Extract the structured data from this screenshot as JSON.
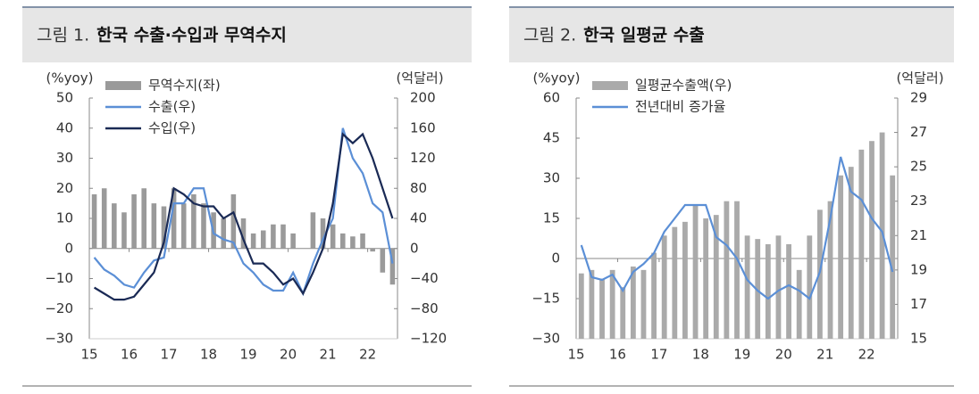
{
  "chart_data": [
    {
      "type": "combo",
      "figure_label": "그림 1.",
      "title": "한국 수출·수입과 무역수지",
      "y_label": "(%yoy)",
      "y2_label": "(억달러)",
      "categories": [
        "15",
        null,
        null,
        null,
        "16",
        null,
        null,
        null,
        "17",
        null,
        null,
        null,
        "18",
        null,
        null,
        null,
        "19",
        null,
        null,
        null,
        "20",
        null,
        null,
        null,
        "21",
        null,
        null,
        null,
        "22",
        null,
        null
      ],
      "ylim": [
        -30,
        50
      ],
      "yticks": [
        {
          "value": -30,
          "label": "−30"
        },
        {
          "value": -20,
          "label": "−20"
        },
        {
          "value": -10,
          "label": "−10"
        },
        0,
        10,
        20,
        30,
        40,
        50
      ],
      "y2lim": [
        -120,
        200
      ],
      "y2ticks": [
        {
          "value": -120,
          "label": "−120"
        },
        {
          "value": -80,
          "label": "−80"
        },
        {
          "value": -40,
          "label": "−40"
        },
        0,
        40,
        80,
        120,
        160,
        200
      ],
      "series": [
        {
          "name": "무역수지(좌)",
          "type": "bar",
          "color": "#9a9a9a",
          "values": [
            18,
            20,
            15,
            12,
            18,
            20,
            15,
            14,
            20,
            15,
            18,
            15,
            12,
            10,
            18,
            10,
            5,
            6,
            8,
            8,
            5,
            0,
            12,
            10,
            8,
            5,
            4,
            5,
            -1,
            -8,
            -12
          ]
        },
        {
          "name": "수출(우)",
          "type": "line",
          "axis": "y2",
          "color": "#5b8fd6",
          "values": [
            -12,
            -28,
            -36,
            -48,
            -52,
            -32,
            -16,
            -12,
            60,
            60,
            80,
            80,
            20,
            12,
            8,
            -20,
            -32,
            -48,
            -56,
            -56,
            -32,
            -60,
            -20,
            12,
            40,
            160,
            120,
            100,
            60,
            48,
            -20
          ]
        },
        {
          "name": "수입(우)",
          "type": "line",
          "axis": "y2",
          "color": "#1a2a55",
          "values": [
            -52,
            -60,
            -68,
            -68,
            -64,
            -48,
            -32,
            8,
            80,
            72,
            60,
            56,
            56,
            40,
            48,
            12,
            -20,
            -20,
            -32,
            -48,
            -40,
            -60,
            -32,
            0,
            60,
            152,
            140,
            152,
            120,
            80,
            40
          ]
        }
      ]
    },
    {
      "type": "combo",
      "figure_label": "그림 2.",
      "title": "한국 일평균 수출",
      "y_label": "(%yoy)",
      "y2_label": "(억달러)",
      "categories": [
        "15",
        null,
        null,
        null,
        "16",
        null,
        null,
        null,
        "17",
        null,
        null,
        null,
        "18",
        null,
        null,
        null,
        "19",
        null,
        null,
        null,
        "20",
        null,
        null,
        null,
        "21",
        null,
        null,
        null,
        "22",
        null,
        null
      ],
      "ylim": [
        -30,
        60
      ],
      "yticks": [
        {
          "value": -30,
          "label": "−30"
        },
        {
          "value": -15,
          "label": "−15"
        },
        0,
        15,
        30,
        45,
        60
      ],
      "y2lim": [
        15,
        29
      ],
      "y2ticks": [
        15,
        17,
        19,
        21,
        23,
        25,
        27,
        29
      ],
      "series": [
        {
          "name": "일평균수출액(우)",
          "type": "bar",
          "axis": "y2",
          "color": "#aaaaaa",
          "values": [
            18.8,
            19,
            18.5,
            19,
            18,
            19.2,
            19,
            20,
            21,
            21.5,
            21.8,
            22.8,
            22,
            22.2,
            23,
            23,
            21,
            20.8,
            20.5,
            21,
            20.5,
            19,
            21,
            22.5,
            23,
            24.5,
            25,
            26,
            26.5,
            27,
            24.5
          ]
        },
        {
          "name": "전년대비 증가율",
          "type": "line",
          "color": "#5b8fd6",
          "values": [
            5,
            -7,
            -8,
            -6,
            -12,
            -5,
            -2,
            2,
            10,
            15,
            20,
            20,
            20,
            8,
            5,
            0,
            -8,
            -12,
            -15,
            -12,
            -10,
            -12,
            -15,
            -5,
            15,
            38,
            25,
            22,
            15,
            10,
            -5
          ]
        }
      ]
    }
  ]
}
